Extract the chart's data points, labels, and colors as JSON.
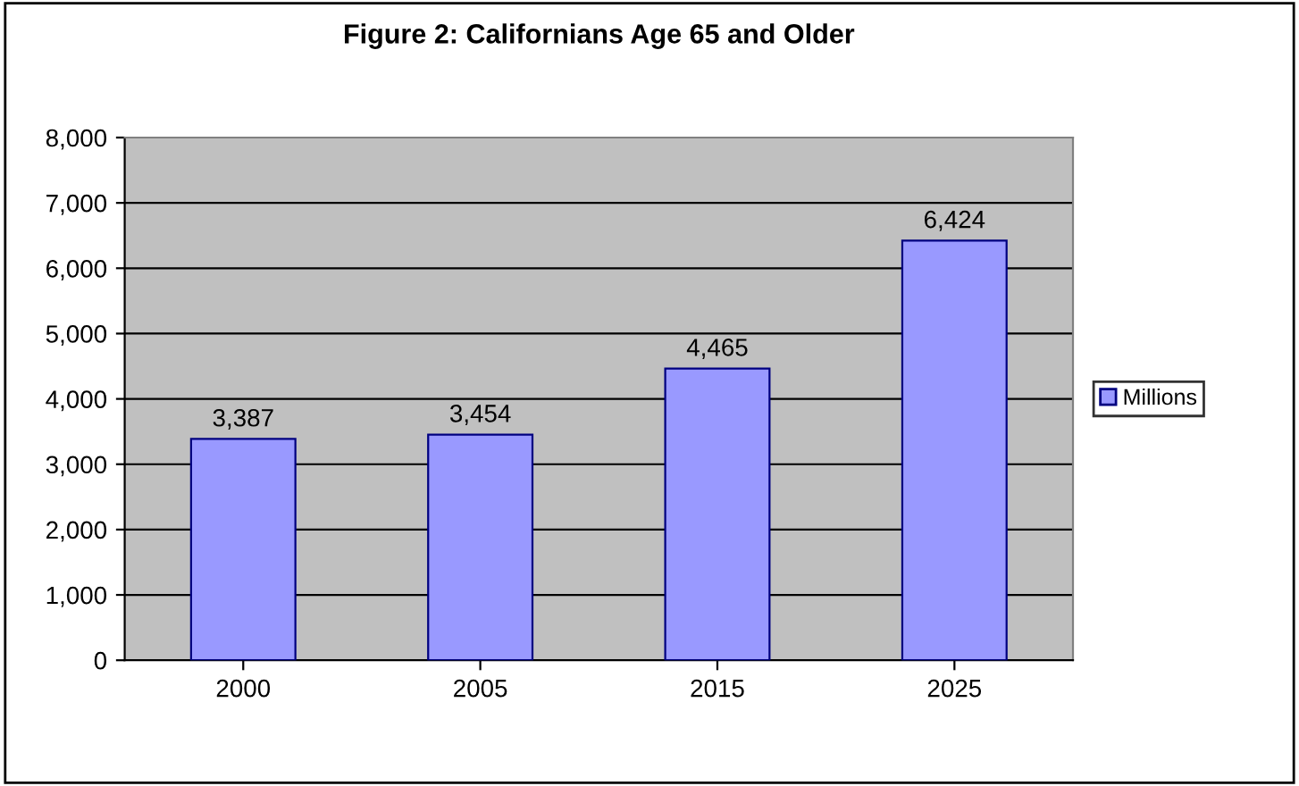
{
  "chart_data": {
    "type": "bar",
    "title": "Figure 2: Californians Age 65 and Older",
    "categories": [
      "2000",
      "2005",
      "2015",
      "2025"
    ],
    "series": [
      {
        "name": "Millions",
        "color": "#9999ff",
        "values": [
          3387,
          3454,
          4465,
          6424
        ],
        "value_labels": [
          "3,387",
          "3,454",
          "4,465",
          "6,424"
        ]
      }
    ],
    "ylim": [
      0,
      8000
    ],
    "yticks": [
      0,
      {
        "value": 1000,
        "label": "1,000"
      },
      {
        "value": 2000,
        "label": "2,000"
      },
      {
        "value": 3000,
        "label": "3,000"
      },
      {
        "value": 4000,
        "label": "4,000"
      },
      {
        "value": 5000,
        "label": "5,000"
      },
      {
        "value": 6000,
        "label": "6,000"
      },
      {
        "value": 7000,
        "label": "7,000"
      },
      {
        "value": 8000,
        "label": "8,000"
      }
    ],
    "grid": "y",
    "legend": "right"
  }
}
